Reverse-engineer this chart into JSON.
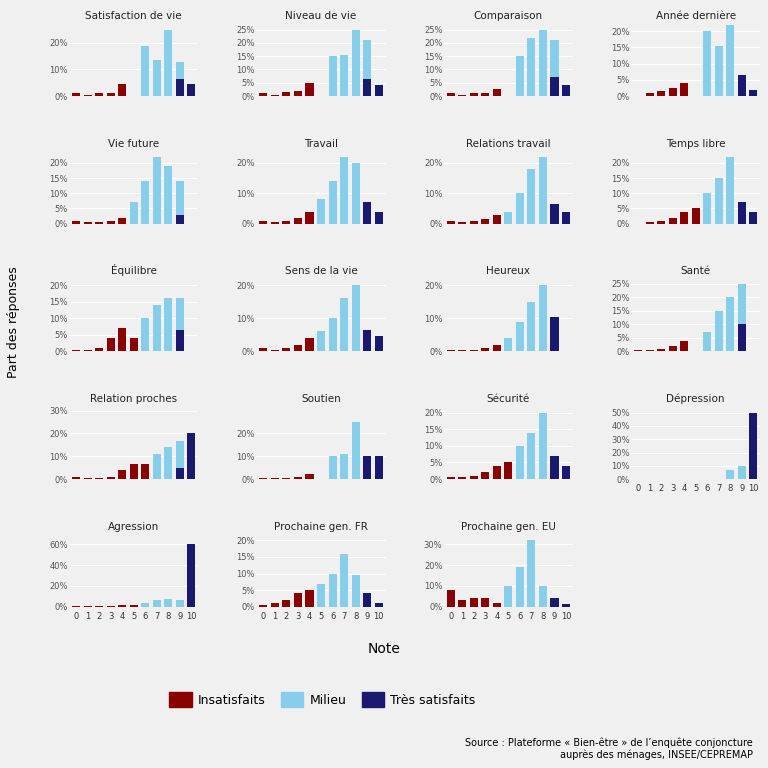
{
  "layout": [
    [
      "Satisfaction de vie",
      "Niveau de vie",
      "Comparaison",
      "Année dernière"
    ],
    [
      "Vie future",
      "Travail",
      "Relations travail",
      "Temps libre"
    ],
    [
      "Équilibre",
      "Sens de la vie",
      "Heureux",
      "Santé"
    ],
    [
      "Relation proches",
      "Soutien",
      "Sécurité",
      "Dépression"
    ],
    [
      "Agression",
      "Prochaine gen. FR",
      "Prochaine gen. EU",
      null
    ]
  ],
  "subplots": {
    "Satisfaction de vie": {
      "ylim": [
        0,
        0.275
      ],
      "yticks": [
        0,
        0.1,
        0.2
      ],
      "ytick_labels": [
        "0%",
        "10%",
        "20%"
      ],
      "ins": [
        0.01,
        0.005,
        0.01,
        0.01,
        0.045,
        0,
        0,
        0,
        0,
        0,
        0
      ],
      "mid": [
        0,
        0,
        0,
        0,
        0,
        0,
        0.19,
        0.135,
        0.25,
        0.13,
        0
      ],
      "sat": [
        0,
        0,
        0,
        0,
        0,
        0,
        0,
        0,
        0,
        0.065,
        0.045
      ]
    },
    "Niveau de vie": {
      "ylim": [
        0,
        0.275
      ],
      "yticks": [
        0,
        0.05,
        0.1,
        0.15,
        0.2,
        0.25
      ],
      "ytick_labels": [
        "0%",
        "5%",
        "10%",
        "15%",
        "20%",
        "25%"
      ],
      "ins": [
        0.01,
        0.005,
        0.015,
        0.02,
        0.05,
        0,
        0,
        0,
        0,
        0,
        0
      ],
      "mid": [
        0,
        0,
        0,
        0,
        0,
        0,
        0.15,
        0.155,
        0.25,
        0.21,
        0
      ],
      "sat": [
        0,
        0,
        0,
        0,
        0,
        0,
        0,
        0,
        0,
        0.065,
        0.04
      ]
    },
    "Comparaison": {
      "ylim": [
        0,
        0.275
      ],
      "yticks": [
        0,
        0.05,
        0.1,
        0.15,
        0.2,
        0.25
      ],
      "ytick_labels": [
        "0%",
        "5%",
        "10%",
        "15%",
        "20%",
        "25%"
      ],
      "ins": [
        0.01,
        0.005,
        0.01,
        0.01,
        0.025,
        0,
        0,
        0,
        0,
        0,
        0
      ],
      "mid": [
        0,
        0,
        0,
        0,
        0,
        0,
        0.15,
        0.22,
        0.25,
        0.21,
        0
      ],
      "sat": [
        0,
        0,
        0,
        0,
        0,
        0,
        0,
        0,
        0,
        0.07,
        0.04
      ]
    },
    "Année dernière": {
      "ylim": [
        0,
        0.225
      ],
      "yticks": [
        0,
        0.05,
        0.1,
        0.15,
        0.2
      ],
      "ytick_labels": [
        "0%",
        "5%",
        "10%",
        "15%",
        "20%"
      ],
      "ins": [
        0,
        0.01,
        0.015,
        0.025,
        0.04,
        0,
        0,
        0,
        0,
        0,
        0
      ],
      "mid": [
        0,
        0,
        0,
        0,
        0,
        0,
        0.2,
        0.155,
        0.22,
        0,
        0
      ],
      "sat": [
        0,
        0,
        0,
        0,
        0,
        0,
        0,
        0,
        0,
        0.065,
        0.02
      ]
    },
    "Vie future": {
      "ylim": [
        0,
        0.24
      ],
      "yticks": [
        0,
        0.05,
        0.1,
        0.15,
        0.2
      ],
      "ytick_labels": [
        "0%",
        "5%",
        "10%",
        "15%",
        "20%"
      ],
      "ins": [
        0.01,
        0.005,
        0.005,
        0.01,
        0.02,
        0,
        0,
        0,
        0,
        0,
        0
      ],
      "mid": [
        0,
        0,
        0,
        0,
        0,
        0.07,
        0.14,
        0.22,
        0.19,
        0.14,
        0
      ],
      "sat": [
        0,
        0,
        0,
        0,
        0,
        0,
        0,
        0,
        0,
        0.03,
        0
      ]
    },
    "Travail": {
      "ylim": [
        0,
        0.24
      ],
      "yticks": [
        0,
        0.1,
        0.2
      ],
      "ytick_labels": [
        "0%",
        "10%",
        "20%"
      ],
      "ins": [
        0.01,
        0.005,
        0.01,
        0.02,
        0.04,
        0,
        0,
        0,
        0,
        0,
        0
      ],
      "mid": [
        0,
        0,
        0,
        0,
        0,
        0.08,
        0.14,
        0.22,
        0.2,
        0,
        0
      ],
      "sat": [
        0,
        0,
        0,
        0,
        0,
        0,
        0,
        0,
        0,
        0.07,
        0.04
      ]
    },
    "Relations travail": {
      "ylim": [
        0,
        0.24
      ],
      "yticks": [
        0,
        0.1,
        0.2
      ],
      "ytick_labels": [
        "0%",
        "10%",
        "20%"
      ],
      "ins": [
        0.01,
        0.005,
        0.01,
        0.015,
        0.03,
        0,
        0,
        0,
        0,
        0,
        0
      ],
      "mid": [
        0,
        0,
        0,
        0,
        0,
        0.04,
        0.1,
        0.18,
        0.22,
        0,
        0
      ],
      "sat": [
        0,
        0,
        0,
        0,
        0,
        0,
        0,
        0,
        0,
        0.065,
        0.04
      ]
    },
    "Temps libre": {
      "ylim": [
        0,
        0.24
      ],
      "yticks": [
        0,
        0.05,
        0.1,
        0.15,
        0.2
      ],
      "ytick_labels": [
        "0%",
        "5%",
        "10%",
        "15%",
        "20%"
      ],
      "ins": [
        0,
        0.005,
        0.01,
        0.02,
        0.04,
        0.05,
        0,
        0,
        0,
        0,
        0
      ],
      "mid": [
        0,
        0,
        0,
        0,
        0,
        0,
        0.1,
        0.15,
        0.22,
        0,
        0
      ],
      "sat": [
        0,
        0,
        0,
        0,
        0,
        0,
        0,
        0,
        0,
        0.07,
        0.04
      ]
    },
    "Équilibre": {
      "ylim": [
        0,
        0.22
      ],
      "yticks": [
        0,
        0.05,
        0.1,
        0.15,
        0.2
      ],
      "ytick_labels": [
        "0%",
        "5%",
        "10%",
        "15%",
        "20%"
      ],
      "ins": [
        0.005,
        0.005,
        0.01,
        0.04,
        0.07,
        0.04,
        0,
        0,
        0,
        0,
        0
      ],
      "mid": [
        0,
        0,
        0,
        0,
        0,
        0,
        0.1,
        0.14,
        0.16,
        0.16,
        0
      ],
      "sat": [
        0,
        0,
        0,
        0,
        0,
        0,
        0,
        0,
        0,
        0.065,
        0
      ]
    },
    "Sens de la vie": {
      "ylim": [
        0,
        0.22
      ],
      "yticks": [
        0,
        0.1,
        0.2
      ],
      "ytick_labels": [
        "0%",
        "10%",
        "20%"
      ],
      "ins": [
        0.01,
        0.005,
        0.01,
        0.02,
        0.04,
        0,
        0,
        0,
        0,
        0,
        0
      ],
      "mid": [
        0,
        0,
        0,
        0,
        0,
        0.06,
        0.1,
        0.16,
        0.2,
        0,
        0
      ],
      "sat": [
        0,
        0,
        0,
        0,
        0,
        0,
        0,
        0,
        0,
        0.065,
        0.045
      ]
    },
    "Heureux": {
      "ylim": [
        0,
        0.22
      ],
      "yticks": [
        0,
        0.1,
        0.2
      ],
      "ytick_labels": [
        "0%",
        "10%",
        "20%"
      ],
      "ins": [
        0.005,
        0.005,
        0.005,
        0.01,
        0.02,
        0,
        0,
        0,
        0,
        0,
        0
      ],
      "mid": [
        0,
        0,
        0,
        0,
        0,
        0.04,
        0.09,
        0.15,
        0.2,
        0,
        0
      ],
      "sat": [
        0,
        0,
        0,
        0,
        0,
        0,
        0,
        0,
        0,
        0.105,
        0
      ]
    },
    "Santé": {
      "ylim": [
        0,
        0.27
      ],
      "yticks": [
        0,
        0.05,
        0.1,
        0.15,
        0.2,
        0.25
      ],
      "ytick_labels": [
        "0%",
        "5%",
        "10%",
        "15%",
        "20%",
        "25%"
      ],
      "ins": [
        0.005,
        0.005,
        0.01,
        0.02,
        0.04,
        0,
        0,
        0,
        0,
        0,
        0
      ],
      "mid": [
        0,
        0,
        0,
        0,
        0,
        0,
        0.07,
        0.15,
        0.2,
        0.25,
        0
      ],
      "sat": [
        0,
        0,
        0,
        0,
        0,
        0,
        0,
        0,
        0,
        0.1,
        0
      ]
    },
    "Relation proches": {
      "ylim": [
        0,
        0.32
      ],
      "yticks": [
        0,
        0.1,
        0.2,
        0.3
      ],
      "ytick_labels": [
        "0%",
        "10%",
        "20%",
        "30%"
      ],
      "ins": [
        0.01,
        0.005,
        0.005,
        0.01,
        0.04,
        0.065,
        0.065,
        0,
        0,
        0,
        0
      ],
      "mid": [
        0,
        0,
        0,
        0,
        0,
        0,
        0,
        0.11,
        0.14,
        0.165,
        0
      ],
      "sat": [
        0,
        0,
        0,
        0,
        0,
        0,
        0,
        0,
        0,
        0.05,
        0.2
      ]
    },
    "Soutien": {
      "ylim": [
        0,
        0.32
      ],
      "yticks": [
        0,
        0.1,
        0.2
      ],
      "ytick_labels": [
        "0%",
        "10%",
        "20%"
      ],
      "ins": [
        0.005,
        0.005,
        0.005,
        0.01,
        0.02,
        0,
        0,
        0,
        0,
        0,
        0
      ],
      "mid": [
        0,
        0,
        0,
        0,
        0,
        0,
        0.1,
        0.11,
        0.25,
        0,
        0
      ],
      "sat": [
        0,
        0,
        0,
        0,
        0,
        0,
        0,
        0,
        0,
        0.1,
        0.1
      ]
    },
    "Sécurité": {
      "ylim": [
        0,
        0.22
      ],
      "yticks": [
        0,
        0.05,
        0.1,
        0.15,
        0.2
      ],
      "ytick_labels": [
        "0%",
        "5%",
        "10%",
        "15%",
        "20%"
      ],
      "ins": [
        0.005,
        0.005,
        0.01,
        0.02,
        0.04,
        0.05,
        0,
        0,
        0,
        0,
        0
      ],
      "mid": [
        0,
        0,
        0,
        0,
        0,
        0,
        0.1,
        0.14,
        0.2,
        0,
        0
      ],
      "sat": [
        0,
        0,
        0,
        0,
        0,
        0,
        0,
        0,
        0,
        0.07,
        0.04
      ]
    },
    "Dépression": {
      "ylim": [
        0,
        0.55
      ],
      "yticks": [
        0,
        0.1,
        0.2,
        0.3,
        0.4,
        0.5
      ],
      "ytick_labels": [
        "0%",
        "10%",
        "20%",
        "30%",
        "40%",
        "50%"
      ],
      "ins": [
        0,
        0,
        0,
        0,
        0,
        0,
        0,
        0,
        0,
        0,
        0
      ],
      "mid": [
        0,
        0,
        0,
        0,
        0,
        0,
        0,
        0,
        0.07,
        0.1,
        0
      ],
      "sat": [
        0,
        0,
        0,
        0,
        0,
        0,
        0,
        0,
        0,
        0,
        0.5
      ]
    },
    "Agression": {
      "ylim": [
        0,
        0.7
      ],
      "yticks": [
        0,
        0.2,
        0.4,
        0.6
      ],
      "ytick_labels": [
        "0%",
        "20%",
        "40%",
        "60%"
      ],
      "ins": [
        0.005,
        0.005,
        0.01,
        0.01,
        0.02,
        0.02,
        0,
        0,
        0,
        0,
        0
      ],
      "mid": [
        0,
        0,
        0,
        0,
        0,
        0,
        0.04,
        0.06,
        0.07,
        0.06,
        0
      ],
      "sat": [
        0,
        0,
        0,
        0,
        0,
        0,
        0,
        0,
        0,
        0,
        0.6
      ]
    },
    "Prochaine gen. FR": {
      "ylim": [
        0,
        0.22
      ],
      "yticks": [
        0,
        0.05,
        0.1,
        0.15,
        0.2
      ],
      "ytick_labels": [
        "0%",
        "5%",
        "10%",
        "15%",
        "20%"
      ],
      "ins": [
        0.005,
        0.01,
        0.02,
        0.04,
        0.05,
        0,
        0,
        0,
        0,
        0,
        0
      ],
      "mid": [
        0,
        0,
        0,
        0,
        0,
        0.07,
        0.1,
        0.16,
        0.095,
        0,
        0
      ],
      "sat": [
        0,
        0,
        0,
        0,
        0,
        0,
        0,
        0,
        0,
        0.04,
        0.01
      ]
    },
    "Prochaine gen. EU": {
      "ylim": [
        0,
        0.35
      ],
      "yticks": [
        0,
        0.1,
        0.2,
        0.3
      ],
      "ytick_labels": [
        "0%",
        "10%",
        "20%",
        "30%"
      ],
      "ins": [
        0.08,
        0.03,
        0.04,
        0.04,
        0.02,
        0,
        0,
        0,
        0,
        0,
        0
      ],
      "mid": [
        0,
        0,
        0,
        0,
        0,
        0.1,
        0.19,
        0.32,
        0.1,
        0,
        0
      ],
      "sat": [
        0,
        0,
        0,
        0,
        0,
        0,
        0,
        0,
        0,
        0.04,
        0.015
      ]
    }
  },
  "color_ins": "#8B0000",
  "color_mid": "#87CEEB",
  "color_sat": "#191970",
  "bg_color": "#f0f0f0",
  "grid_color": "#ffffff",
  "ylabel": "Part des réponses",
  "xlabel": "Note",
  "legend_labels": [
    "Insatisfaits",
    "Milieu",
    "Très satisfaits"
  ],
  "source_text": "Source : Plateforme « Bien-être » de l’enquête conjoncture\nauprès des ménages, INSEE/CEPREMAP"
}
